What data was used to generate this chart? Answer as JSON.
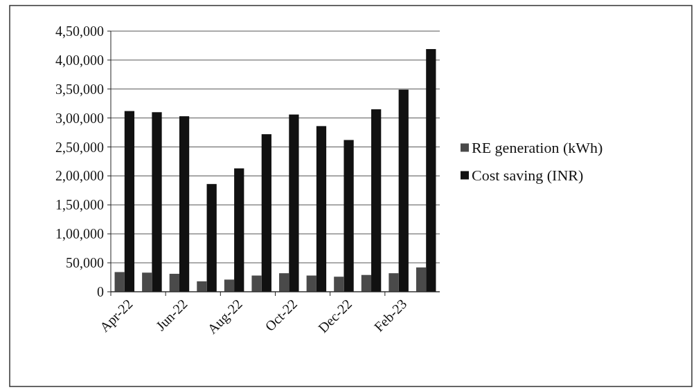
{
  "chart_data": {
    "type": "bar",
    "categories": [
      "Apr-22",
      null,
      "Jun-22",
      null,
      "Aug-22",
      null,
      "Oct-22",
      null,
      "Dec-22",
      null,
      "Feb-23",
      null
    ],
    "series": [
      {
        "name": "RE generation (kWh)",
        "color": "#4a4a4a",
        "values": [
          34000,
          33000,
          31000,
          18000,
          21000,
          28000,
          32000,
          28000,
          26000,
          29000,
          32000,
          42000
        ]
      },
      {
        "name": "Cost saving (INR)",
        "color": "#111111",
        "values": [
          312000,
          310000,
          303000,
          186000,
          213000,
          272000,
          306000,
          286000,
          262000,
          315000,
          349000,
          419000
        ]
      }
    ],
    "ylim": [
      0,
      450000
    ],
    "yticks": [
      0,
      {
        "value": 50000,
        "label": "50,000"
      },
      {
        "value": 100000,
        "label": "1,00,000"
      },
      {
        "value": 150000,
        "label": "1,50,000"
      },
      {
        "value": 200000,
        "label": "2,00,000"
      },
      {
        "value": 250000,
        "label": "2,50,000"
      },
      {
        "value": 300000,
        "label": "3,00,000"
      },
      {
        "value": 350000,
        "label": "3,50,000"
      },
      {
        "value": 400000,
        "label": "4,00,000"
      },
      {
        "value": 450000,
        "label": "4,50,000"
      }
    ],
    "grid": "y",
    "legend": "right"
  }
}
